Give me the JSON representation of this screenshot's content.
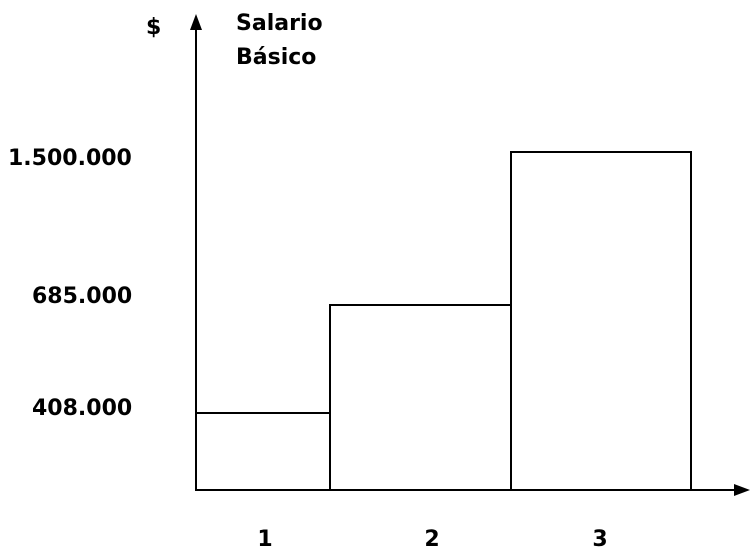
{
  "chart_data": {
    "type": "bar",
    "ylabel": "$",
    "title_lines": [
      "Salario",
      "Básico"
    ],
    "categories": [
      "1",
      "2",
      "3"
    ],
    "values": [
      408000,
      685000,
      1500000
    ],
    "ytick_labels": [
      {
        "value": 408000,
        "label": "408.000"
      },
      {
        "value": 685000,
        "label": "685.000"
      },
      {
        "value": 1500000,
        "label": "1.500.000"
      }
    ],
    "grid": false,
    "legend": "none",
    "bar_fill": "#ffffff",
    "bar_stroke": "#000000"
  }
}
